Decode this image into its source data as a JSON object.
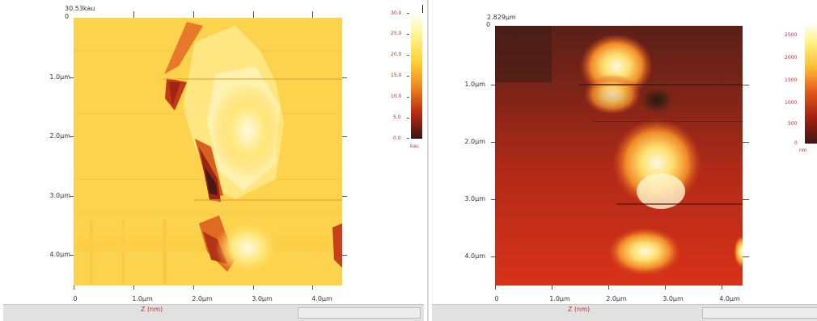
{
  "left_panel": {
    "header_value": "30.53kau",
    "origin_label": "0",
    "y_ticks": [
      "1.0µm",
      "2.0µm",
      "3.0µm",
      "4.0µm"
    ],
    "x_ticks": [
      "0",
      "1.0µm",
      "2.0µm",
      "3.0µm",
      "4.0µm"
    ],
    "axis_title": "Z (nm)",
    "scale_ticks": [
      "30.0",
      "25.0",
      "20.0",
      "15.0",
      "10.0",
      "5.0",
      "0.0"
    ],
    "scale_unit": "kau",
    "colormap": [
      "#ffffff",
      "#fff58a",
      "#ffd23a",
      "#f08a1e",
      "#b82812",
      "#3a1510"
    ]
  },
  "right_panel": {
    "header_value": "2.829µm",
    "origin_label": "0",
    "y_ticks": [
      "1.0µm",
      "2.0µm",
      "3.0µm",
      "4.0µm"
    ],
    "x_ticks": [
      "0",
      "1.0µm",
      "2.0µm",
      "3.0µm",
      "4.0µm"
    ],
    "axis_title": "Z (nm)",
    "scale_ticks": [
      "2500",
      "2000",
      "1500",
      "1000",
      "500",
      "0"
    ],
    "scale_unit": "nm",
    "colormap": [
      "#ffffff",
      "#fff07a",
      "#ffb832",
      "#e0561a",
      "#9c1e10",
      "#3a1a14"
    ]
  }
}
